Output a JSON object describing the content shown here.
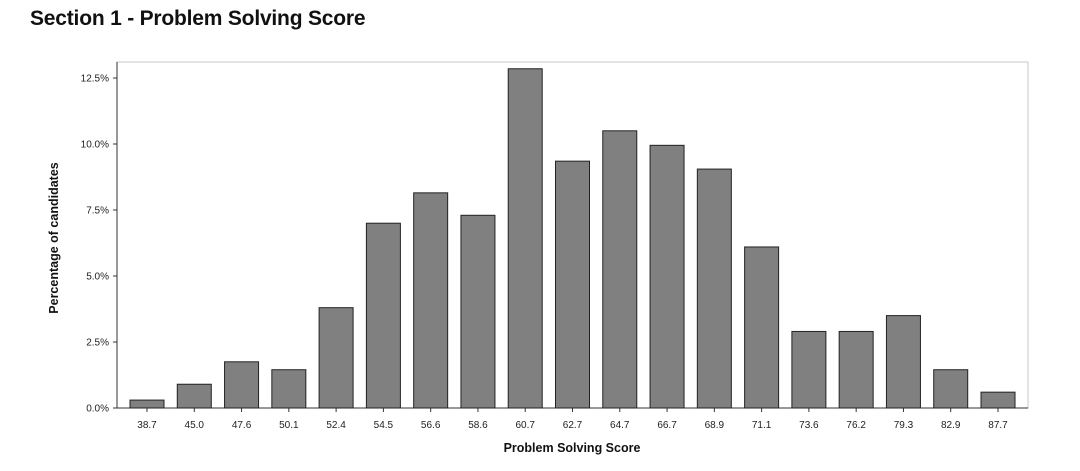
{
  "page": {
    "title": "Section 1 - Problem Solving Score"
  },
  "chart_data": {
    "type": "bar",
    "title": "Section 1 - Problem Solving Score",
    "xlabel": "Problem Solving Score",
    "ylabel": "Percentage of candidates",
    "categories": [
      "38.7",
      "45.0",
      "47.6",
      "50.1",
      "52.4",
      "54.5",
      "56.6",
      "58.6",
      "60.7",
      "62.7",
      "64.7",
      "66.7",
      "68.9",
      "71.1",
      "73.6",
      "76.2",
      "79.3",
      "82.9",
      "87.7"
    ],
    "values": [
      0.3,
      0.9,
      1.75,
      1.45,
      3.8,
      7.0,
      8.15,
      7.3,
      12.85,
      9.35,
      10.5,
      9.95,
      9.05,
      6.1,
      2.9,
      2.9,
      3.5,
      1.45,
      0.6
    ],
    "value_unit": "%",
    "ylim": [
      0,
      12.5
    ],
    "yticks": [
      0,
      2.5,
      5.0,
      7.5,
      10.0,
      12.5
    ],
    "ytick_labels": [
      "0.0%",
      "2.5%",
      "5.0%",
      "7.5%",
      "10.0%",
      "12.5%"
    ],
    "grid": false,
    "bar_color": "#808080",
    "bar_edge_color": "#222222"
  }
}
